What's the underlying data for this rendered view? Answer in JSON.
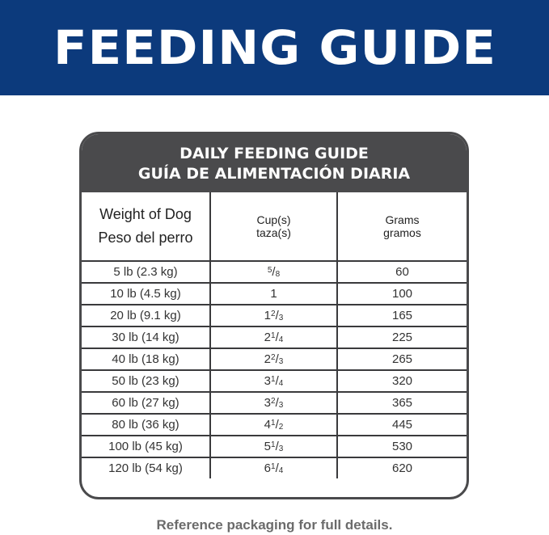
{
  "banner": {
    "title": "FEEDING GUIDE",
    "color": "#0c3a7c"
  },
  "table": {
    "title_en": "DAILY FEEDING GUIDE",
    "title_es": "GUÍA DE ALIMENTACIÓN DIARIA",
    "headers": [
      {
        "en": "Weight of Dog",
        "es": "Peso del perro"
      },
      {
        "en": "Cup(s)",
        "es": "taza(s)"
      },
      {
        "en": "Grams",
        "es": "gramos"
      }
    ],
    "rows": [
      {
        "weight": "5 lb (2.3 kg)",
        "cup_whole": "",
        "cup_num": "5",
        "cup_den": "8",
        "grams": "60"
      },
      {
        "weight": "10 lb (4.5 kg)",
        "cup_whole": "1",
        "cup_num": "",
        "cup_den": "",
        "grams": "100"
      },
      {
        "weight": "20 lb (9.1 kg)",
        "cup_whole": "1",
        "cup_num": "2",
        "cup_den": "3",
        "grams": "165"
      },
      {
        "weight": "30 lb (14 kg)",
        "cup_whole": "2",
        "cup_num": "1",
        "cup_den": "4",
        "grams": "225"
      },
      {
        "weight": "40 lb (18 kg)",
        "cup_whole": "2",
        "cup_num": "2",
        "cup_den": "3",
        "grams": "265"
      },
      {
        "weight": "50 lb (23 kg)",
        "cup_whole": "3",
        "cup_num": "1",
        "cup_den": "4",
        "grams": "320"
      },
      {
        "weight": "60 lb (27 kg)",
        "cup_whole": "3",
        "cup_num": "2",
        "cup_den": "3",
        "grams": "365"
      },
      {
        "weight": "80 lb (36 kg)",
        "cup_whole": "4",
        "cup_num": "1",
        "cup_den": "2",
        "grams": "445"
      },
      {
        "weight": "100 lb (45 kg)",
        "cup_whole": "5",
        "cup_num": "1",
        "cup_den": "3",
        "grams": "530"
      },
      {
        "weight": "120 lb (54 kg)",
        "cup_whole": "6",
        "cup_num": "1",
        "cup_den": "4",
        "grams": "620"
      }
    ]
  },
  "footer": "Reference packaging for full details."
}
